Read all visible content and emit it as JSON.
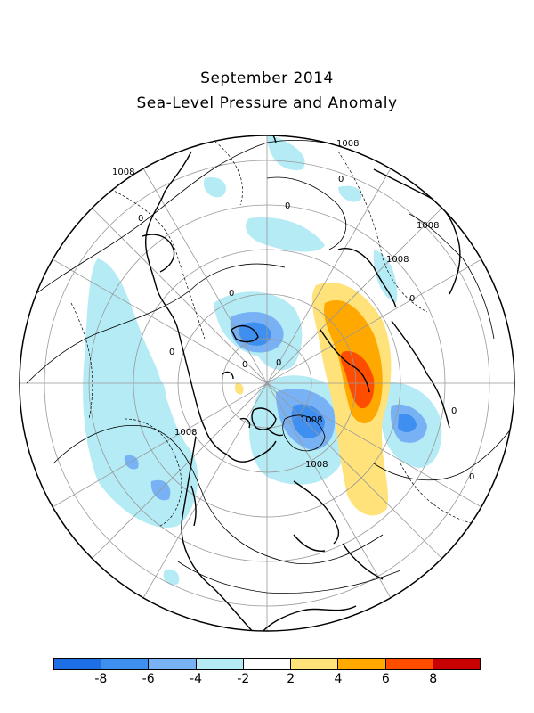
{
  "title": "September 2014",
  "subtitle": "Sea-Level Pressure and Anomaly",
  "contour_labels": {
    "l1": "1008",
    "l2": "0",
    "l3": "1008",
    "l4": "0",
    "l5": "1008",
    "l6": "1008",
    "l7": "0",
    "l8": "0",
    "l9": "1008",
    "l10": "1008",
    "l11": "0",
    "l12": "0",
    "l13": "1008",
    "l14": "0",
    "l15": "0",
    "l16": "0",
    "l17": "0"
  },
  "colorbar": {
    "colors": [
      "#1e6fe6",
      "#3f8ff0",
      "#78b2f5",
      "#b4ebf5",
      "#ffffff",
      "#ffe27a",
      "#ffa800",
      "#ff4d00",
      "#c80000"
    ],
    "ticks": [
      "-8",
      "-6",
      "-4",
      "-2",
      "2",
      "4",
      "6",
      "8"
    ]
  }
}
